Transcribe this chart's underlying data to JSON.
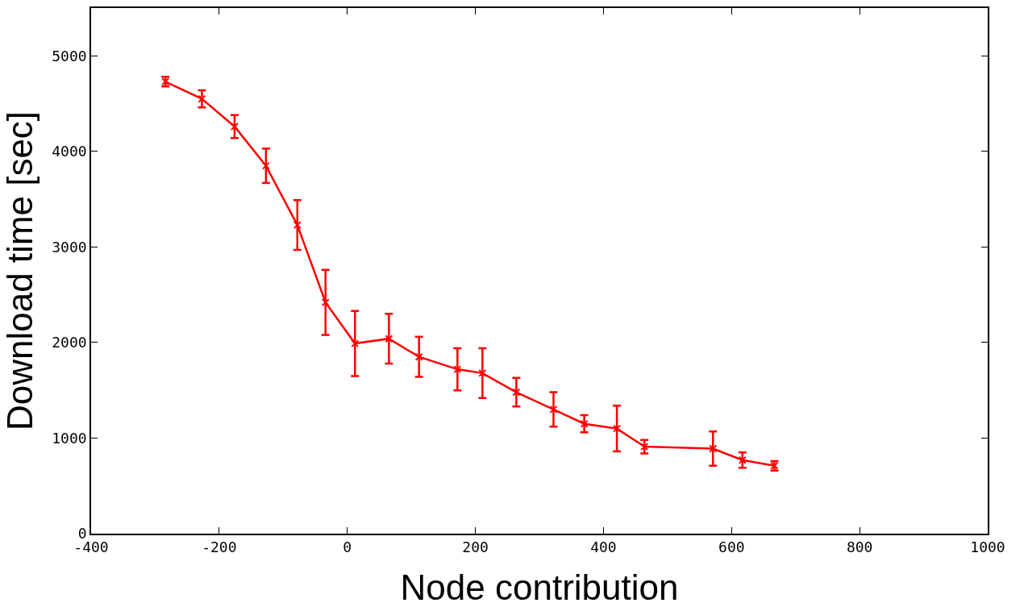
{
  "chart_data": {
    "type": "line",
    "xlabel": "Node contribution",
    "ylabel": "Download time [sec]",
    "x": [
      -284,
      -227,
      -176,
      -127,
      -78,
      -34,
      12,
      65,
      112,
      172,
      211,
      264,
      322,
      370,
      421,
      464,
      571,
      617,
      667
    ],
    "series": [
      {
        "color": "#ff0000",
        "values": [
          4730,
          4550,
          4260,
          3850,
          3230,
          2420,
          1990,
          2040,
          1850,
          1720,
          1680,
          1480,
          1300,
          1150,
          1100,
          910,
          890,
          770,
          710
        ],
        "errors": [
          50,
          90,
          120,
          180,
          260,
          340,
          340,
          260,
          210,
          220,
          260,
          150,
          180,
          90,
          240,
          70,
          180,
          80,
          50
        ]
      }
    ],
    "xlim": [
      -400,
      1000
    ],
    "xticks": [
      -400,
      -200,
      0,
      200,
      400,
      600,
      800,
      1000
    ],
    "ylim": [
      0,
      5500
    ],
    "yticks": [
      0,
      1000,
      2000,
      3000,
      4000,
      5000
    ],
    "grid": false,
    "marker": "cross",
    "line_style": "solid"
  }
}
